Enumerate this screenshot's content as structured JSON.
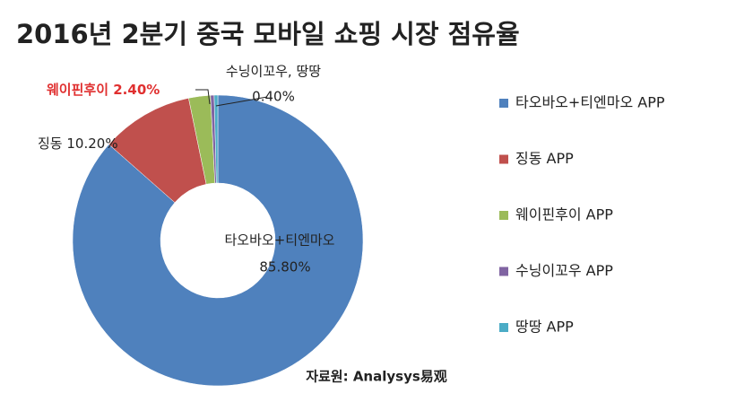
{
  "chart_data": {
    "type": "donut",
    "title": "2016년 2분기 중국 모바일 쇼핑 시장 점유율",
    "categories": [
      "타오바오+티엔마오 APP",
      "징동 APP",
      "웨이핀후이 APP",
      "수닝이꼬우 APP",
      "땅땅 APP"
    ],
    "values": [
      85.8,
      10.2,
      2.4,
      0.4,
      0.4
    ],
    "value_labels": [
      "85.80%",
      "10.20%",
      "2.40%",
      "0.40%",
      null
    ],
    "label_names": [
      "타오바오+티엔마오",
      "징동",
      "웨이핀후이",
      "수닝이꼬우, 땅땅",
      null
    ],
    "colors": [
      "#4f81bd",
      "#c0504d",
      "#9bbb59",
      "#8064a2",
      "#4bacc6"
    ],
    "legend": "right",
    "source": "자료원: Analysys易观"
  }
}
